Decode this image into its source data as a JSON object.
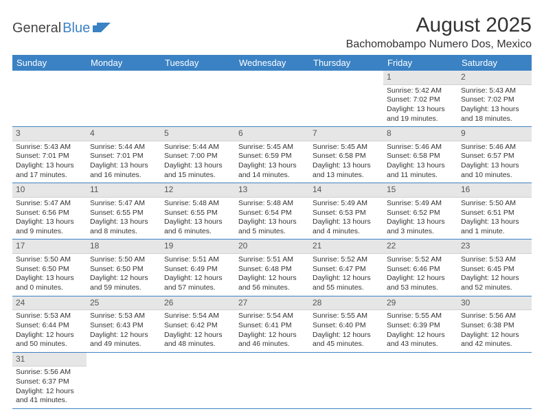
{
  "logo": {
    "word1": "General",
    "word2": "Blue",
    "accent_color": "#3b82c4"
  },
  "title": "August 2025",
  "location": "Bachomobampo Numero Dos, Mexico",
  "weekdays": [
    "Sunday",
    "Monday",
    "Tuesday",
    "Wednesday",
    "Thursday",
    "Friday",
    "Saturday"
  ],
  "calendar": {
    "type": "table",
    "header_bg": "#3b82c4",
    "header_fg": "#ffffff",
    "daynum_bg": "#e6e6e6",
    "row_border": "#3b82c4",
    "first_weekday_index": 5,
    "days": [
      {
        "n": 1,
        "sunrise": "5:42 AM",
        "sunset": "7:02 PM",
        "daylight": "13 hours and 19 minutes."
      },
      {
        "n": 2,
        "sunrise": "5:43 AM",
        "sunset": "7:02 PM",
        "daylight": "13 hours and 18 minutes."
      },
      {
        "n": 3,
        "sunrise": "5:43 AM",
        "sunset": "7:01 PM",
        "daylight": "13 hours and 17 minutes."
      },
      {
        "n": 4,
        "sunrise": "5:44 AM",
        "sunset": "7:01 PM",
        "daylight": "13 hours and 16 minutes."
      },
      {
        "n": 5,
        "sunrise": "5:44 AM",
        "sunset": "7:00 PM",
        "daylight": "13 hours and 15 minutes."
      },
      {
        "n": 6,
        "sunrise": "5:45 AM",
        "sunset": "6:59 PM",
        "daylight": "13 hours and 14 minutes."
      },
      {
        "n": 7,
        "sunrise": "5:45 AM",
        "sunset": "6:58 PM",
        "daylight": "13 hours and 13 minutes."
      },
      {
        "n": 8,
        "sunrise": "5:46 AM",
        "sunset": "6:58 PM",
        "daylight": "13 hours and 11 minutes."
      },
      {
        "n": 9,
        "sunrise": "5:46 AM",
        "sunset": "6:57 PM",
        "daylight": "13 hours and 10 minutes."
      },
      {
        "n": 10,
        "sunrise": "5:47 AM",
        "sunset": "6:56 PM",
        "daylight": "13 hours and 9 minutes."
      },
      {
        "n": 11,
        "sunrise": "5:47 AM",
        "sunset": "6:55 PM",
        "daylight": "13 hours and 8 minutes."
      },
      {
        "n": 12,
        "sunrise": "5:48 AM",
        "sunset": "6:55 PM",
        "daylight": "13 hours and 6 minutes."
      },
      {
        "n": 13,
        "sunrise": "5:48 AM",
        "sunset": "6:54 PM",
        "daylight": "13 hours and 5 minutes."
      },
      {
        "n": 14,
        "sunrise": "5:49 AM",
        "sunset": "6:53 PM",
        "daylight": "13 hours and 4 minutes."
      },
      {
        "n": 15,
        "sunrise": "5:49 AM",
        "sunset": "6:52 PM",
        "daylight": "13 hours and 3 minutes."
      },
      {
        "n": 16,
        "sunrise": "5:50 AM",
        "sunset": "6:51 PM",
        "daylight": "13 hours and 1 minute."
      },
      {
        "n": 17,
        "sunrise": "5:50 AM",
        "sunset": "6:50 PM",
        "daylight": "13 hours and 0 minutes."
      },
      {
        "n": 18,
        "sunrise": "5:50 AM",
        "sunset": "6:50 PM",
        "daylight": "12 hours and 59 minutes."
      },
      {
        "n": 19,
        "sunrise": "5:51 AM",
        "sunset": "6:49 PM",
        "daylight": "12 hours and 57 minutes."
      },
      {
        "n": 20,
        "sunrise": "5:51 AM",
        "sunset": "6:48 PM",
        "daylight": "12 hours and 56 minutes."
      },
      {
        "n": 21,
        "sunrise": "5:52 AM",
        "sunset": "6:47 PM",
        "daylight": "12 hours and 55 minutes."
      },
      {
        "n": 22,
        "sunrise": "5:52 AM",
        "sunset": "6:46 PM",
        "daylight": "12 hours and 53 minutes."
      },
      {
        "n": 23,
        "sunrise": "5:53 AM",
        "sunset": "6:45 PM",
        "daylight": "12 hours and 52 minutes."
      },
      {
        "n": 24,
        "sunrise": "5:53 AM",
        "sunset": "6:44 PM",
        "daylight": "12 hours and 50 minutes."
      },
      {
        "n": 25,
        "sunrise": "5:53 AM",
        "sunset": "6:43 PM",
        "daylight": "12 hours and 49 minutes."
      },
      {
        "n": 26,
        "sunrise": "5:54 AM",
        "sunset": "6:42 PM",
        "daylight": "12 hours and 48 minutes."
      },
      {
        "n": 27,
        "sunrise": "5:54 AM",
        "sunset": "6:41 PM",
        "daylight": "12 hours and 46 minutes."
      },
      {
        "n": 28,
        "sunrise": "5:55 AM",
        "sunset": "6:40 PM",
        "daylight": "12 hours and 45 minutes."
      },
      {
        "n": 29,
        "sunrise": "5:55 AM",
        "sunset": "6:39 PM",
        "daylight": "12 hours and 43 minutes."
      },
      {
        "n": 30,
        "sunrise": "5:56 AM",
        "sunset": "6:38 PM",
        "daylight": "12 hours and 42 minutes."
      },
      {
        "n": 31,
        "sunrise": "5:56 AM",
        "sunset": "6:37 PM",
        "daylight": "12 hours and 41 minutes."
      }
    ],
    "labels": {
      "sunrise": "Sunrise: ",
      "sunset": "Sunset: ",
      "daylight": "Daylight: "
    }
  }
}
